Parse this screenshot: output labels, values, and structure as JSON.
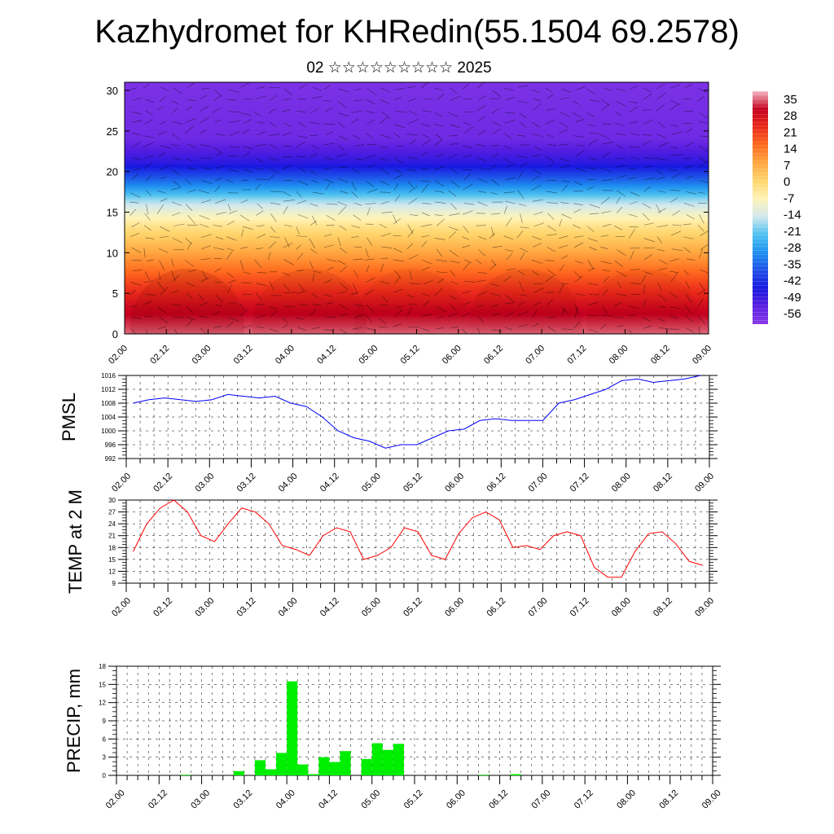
{
  "header": {
    "title": "Kazhydromet for KHRedin(55.1504 69.2578)",
    "subtitle": "02 ☆☆☆☆☆☆☆☆☆ 2025"
  },
  "chart_data": [
    {
      "type": "heatmap",
      "title": "",
      "xlabel": "",
      "ylabel": "",
      "x_ticks": [
        "02.00",
        "02.12",
        "03.00",
        "03.12",
        "04.00",
        "04.12",
        "05.00",
        "05.12",
        "06.00",
        "06.12",
        "07.00",
        "07.12",
        "08.00",
        "08.12",
        "09.00"
      ],
      "y_ticks": [
        0,
        5,
        10,
        15,
        20,
        25,
        30
      ],
      "ylim": [
        0,
        31
      ],
      "colorbar": {
        "labels": [
          35,
          28,
          21,
          14,
          7,
          0,
          -7,
          -14,
          -21,
          -28,
          -35,
          -42,
          -49,
          -56
        ],
        "stops": [
          "#f4b6c2",
          "#c4001f",
          "#ea2a1a",
          "#ff6a1e",
          "#ffa640",
          "#ffd56c",
          "#fff4b8",
          "#d2e8ee",
          "#4dc1f0",
          "#1e90f0",
          "#1e4fe8",
          "#1818e0",
          "#5a1ee0",
          "#8a3ae8"
        ]
      },
      "profile_by_level": [
        {
          "level": 0,
          "value": 32
        },
        {
          "level": 3,
          "value": 27
        },
        {
          "level": 7,
          "value": 16
        },
        {
          "level": 10,
          "value": 7
        },
        {
          "level": 13,
          "value": -2
        },
        {
          "level": 15,
          "value": -10
        },
        {
          "level": 16.5,
          "value": -17
        },
        {
          "level": 18.5,
          "value": -30
        },
        {
          "level": 21,
          "value": -44
        },
        {
          "level": 24,
          "value": -52
        },
        {
          "level": 31,
          "value": -54
        }
      ],
      "grid": false
    },
    {
      "type": "line",
      "ylabel": "PMSL",
      "ylim": [
        992,
        1016
      ],
      "y_ticks": [
        992,
        996,
        1000,
        1004,
        1008,
        1012,
        1016
      ],
      "x_ticks": [
        "02.00",
        "02.12",
        "03.00",
        "03.12",
        "04.00",
        "04.12",
        "05.00",
        "05.12",
        "06.00",
        "06.12",
        "07.00",
        "07.12",
        "08.00",
        "08.12",
        "09.00"
      ],
      "color": "#0000ff",
      "values": [
        1008,
        1009,
        1009.5,
        1009,
        1008.5,
        1009,
        1010.5,
        1010,
        1009.5,
        1010,
        1008,
        1007,
        1004,
        1000,
        998,
        997,
        995,
        996,
        996,
        998,
        1000,
        1000.5,
        1003,
        1003.5,
        1003,
        1003,
        1003,
        1008,
        1009,
        1010.5,
        1012,
        1014.5,
        1015,
        1014,
        1014.5,
        1015,
        1016
      ],
      "grid": true
    },
    {
      "type": "line",
      "ylabel": "TEMP at 2 M",
      "ylim": [
        9,
        30
      ],
      "y_ticks": [
        9,
        12,
        15,
        18,
        21,
        24,
        27,
        30
      ],
      "x_ticks": [
        "02.00",
        "02.12",
        "03.00",
        "03.12",
        "04.00",
        "04.12",
        "05.00",
        "05.12",
        "06.00",
        "06.12",
        "07.00",
        "07.12",
        "08.00",
        "08.12",
        "09.00"
      ],
      "color": "#ff0000",
      "values": [
        17,
        24,
        28,
        30,
        27,
        21,
        19.5,
        24,
        28,
        27,
        24,
        18.5,
        17.5,
        16,
        21,
        23,
        22,
        15,
        16,
        18,
        23,
        22,
        16,
        15,
        21.5,
        25.5,
        27,
        25,
        18,
        18.5,
        17.5,
        21,
        22,
        21,
        13,
        10.5,
        10.5,
        17,
        21.5,
        22,
        19,
        14.5,
        13.5
      ],
      "grid": true
    },
    {
      "type": "bar",
      "ylabel": "PRECIP, mm",
      "ylim": [
        0,
        18
      ],
      "y_ticks": [
        0,
        3,
        6,
        9,
        12,
        15,
        18
      ],
      "x_ticks": [
        "02.00",
        "02.12",
        "03.00",
        "03.12",
        "04.00",
        "04.12",
        "05.00",
        "05.12",
        "06.00",
        "06.12",
        "07.00",
        "07.12",
        "08.00",
        "08.12",
        "09.00"
      ],
      "color": "#00ee00",
      "values": [
        0,
        0,
        0,
        0,
        0,
        0,
        0.1,
        0,
        0,
        0,
        0,
        0.7,
        0,
        2.5,
        1,
        3.7,
        15.5,
        1.8,
        0.2,
        3,
        2.2,
        4,
        0,
        2.7,
        5.3,
        4.2,
        5.2,
        0,
        0,
        0,
        0,
        0,
        0,
        0,
        0.1,
        0,
        0,
        0.2,
        0,
        0,
        0,
        0,
        0,
        0,
        0,
        0,
        0,
        0,
        0,
        0,
        0,
        0,
        0,
        0,
        0,
        0
      ],
      "grid": true
    }
  ]
}
